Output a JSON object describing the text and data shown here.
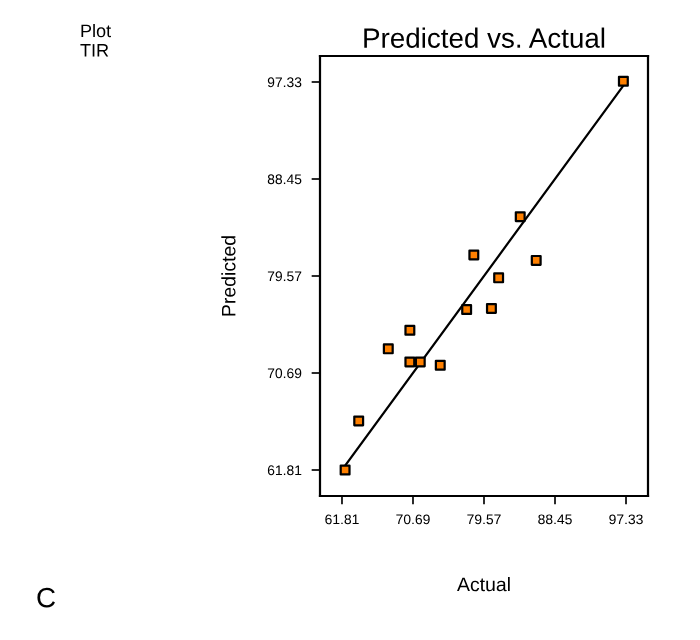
{
  "chart_data": {
    "type": "scatter",
    "title": "Predicted vs. Actual",
    "xlabel": "Actual",
    "ylabel": "Predicted",
    "annotations": [
      "Plot\nTIR",
      "C"
    ],
    "xlim": [
      59.06,
      100.08
    ],
    "ylim": [
      59.43,
      99.71
    ],
    "xticks": [
      61.81,
      70.69,
      79.57,
      88.45,
      97.33
    ],
    "yticks": [
      61.81,
      70.69,
      79.57,
      88.45,
      97.33
    ],
    "grid": false,
    "legend": false,
    "marker": "square",
    "series": [
      {
        "color": "#ff8000",
        "x": [
          62.2,
          63.9,
          67.6,
          70.3,
          70.3,
          71.6,
          74.1,
          77.4,
          78.3,
          80.5,
          81.4,
          84.1,
          86.1,
          97.0
        ],
        "values": [
          61.81,
          66.3,
          72.9,
          74.6,
          71.7,
          71.7,
          71.4,
          76.5,
          81.5,
          76.6,
          79.4,
          85.0,
          81.0,
          97.4
        ]
      },
      {
        "type": "line",
        "color": "#000000",
        "line_style": "solid",
        "marker": "none",
        "x": [
          61.81,
          97.33
        ],
        "values": [
          61.81,
          97.33
        ]
      }
    ]
  }
}
